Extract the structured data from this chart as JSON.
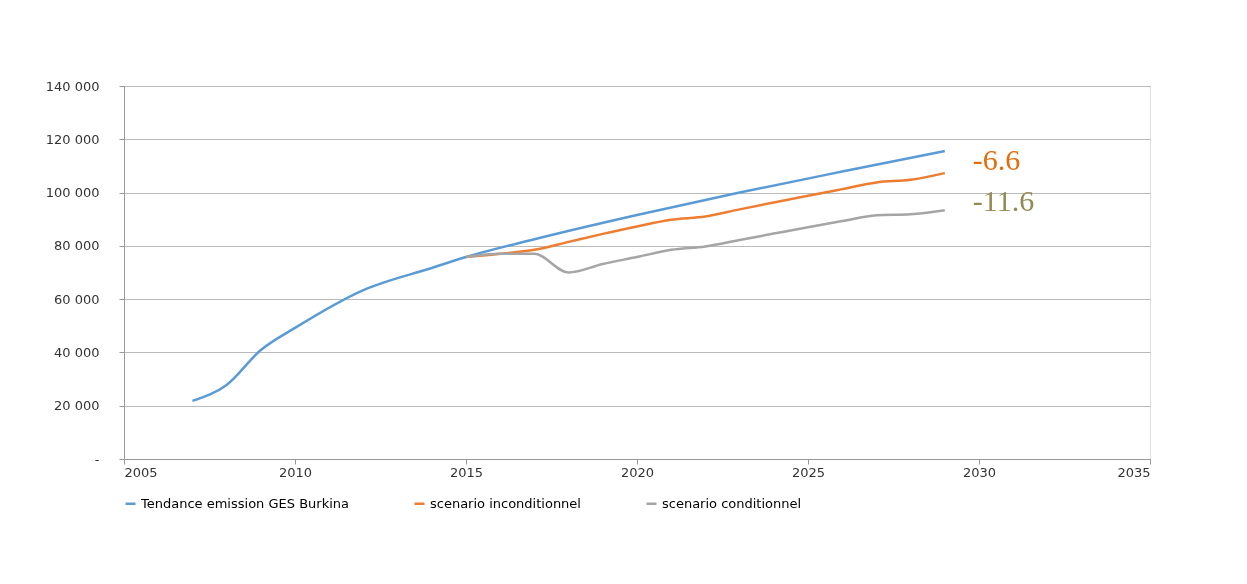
{
  "chart_data": {
    "type": "line",
    "xlim": [
      2005,
      2035
    ],
    "xticks": [
      2005,
      2010,
      2015,
      2020,
      2025,
      2030,
      2035
    ],
    "ylim": [
      0,
      140000
    ],
    "yticks": [
      {
        "value": 0,
        "label": "-"
      },
      {
        "value": 20000,
        "label": "20 000"
      },
      {
        "value": 40000,
        "label": "40 000"
      },
      {
        "value": 60000,
        "label": "60 000"
      },
      {
        "value": 80000,
        "label": "80 000"
      },
      {
        "value": 100000,
        "label": "100 000"
      },
      {
        "value": 120000,
        "label": "120 000"
      },
      {
        "value": 140000,
        "label": "140 000"
      }
    ],
    "grid": "y",
    "legend": "bottom",
    "marker": "none",
    "line_style": "solid",
    "series": [
      {
        "name": "Tendance emission GES Burkina",
        "color": "#5b9bd5",
        "x": [
          2007,
          2008,
          2009,
          2010,
          2012,
          2014,
          2015,
          2017,
          2020,
          2023,
          2026,
          2029
        ],
        "values": [
          21800,
          27800,
          40900,
          49200,
          63400,
          71700,
          75800,
          82500,
          91600,
          100000,
          107900,
          115600
        ]
      },
      {
        "name": "scenario inconditionnel",
        "color": "#ed7d31",
        "x": [
          2015,
          2016,
          2017,
          2018,
          2019,
          2020,
          2021,
          2022,
          2023,
          2024,
          2025,
          2026,
          2027,
          2028,
          2029
        ],
        "values": [
          75800,
          77000,
          78500,
          81500,
          84500,
          87300,
          89800,
          91000,
          93700,
          96300,
          98800,
          101300,
          103800,
          104800,
          107300
        ]
      },
      {
        "name": "scenario conditionnel",
        "color": "#a5a5a5",
        "x": [
          2015,
          2016,
          2017,
          2018,
          2019,
          2020,
          2021,
          2022,
          2023,
          2024,
          2025,
          2026,
          2027,
          2028,
          2029
        ],
        "values": [
          75800,
          77000,
          77000,
          70000,
          73200,
          75800,
          78500,
          79800,
          82200,
          84600,
          87000,
          89300,
          91500,
          91900,
          93400
        ]
      }
    ],
    "annotations": [
      "-6.6",
      "-11.6"
    ]
  }
}
